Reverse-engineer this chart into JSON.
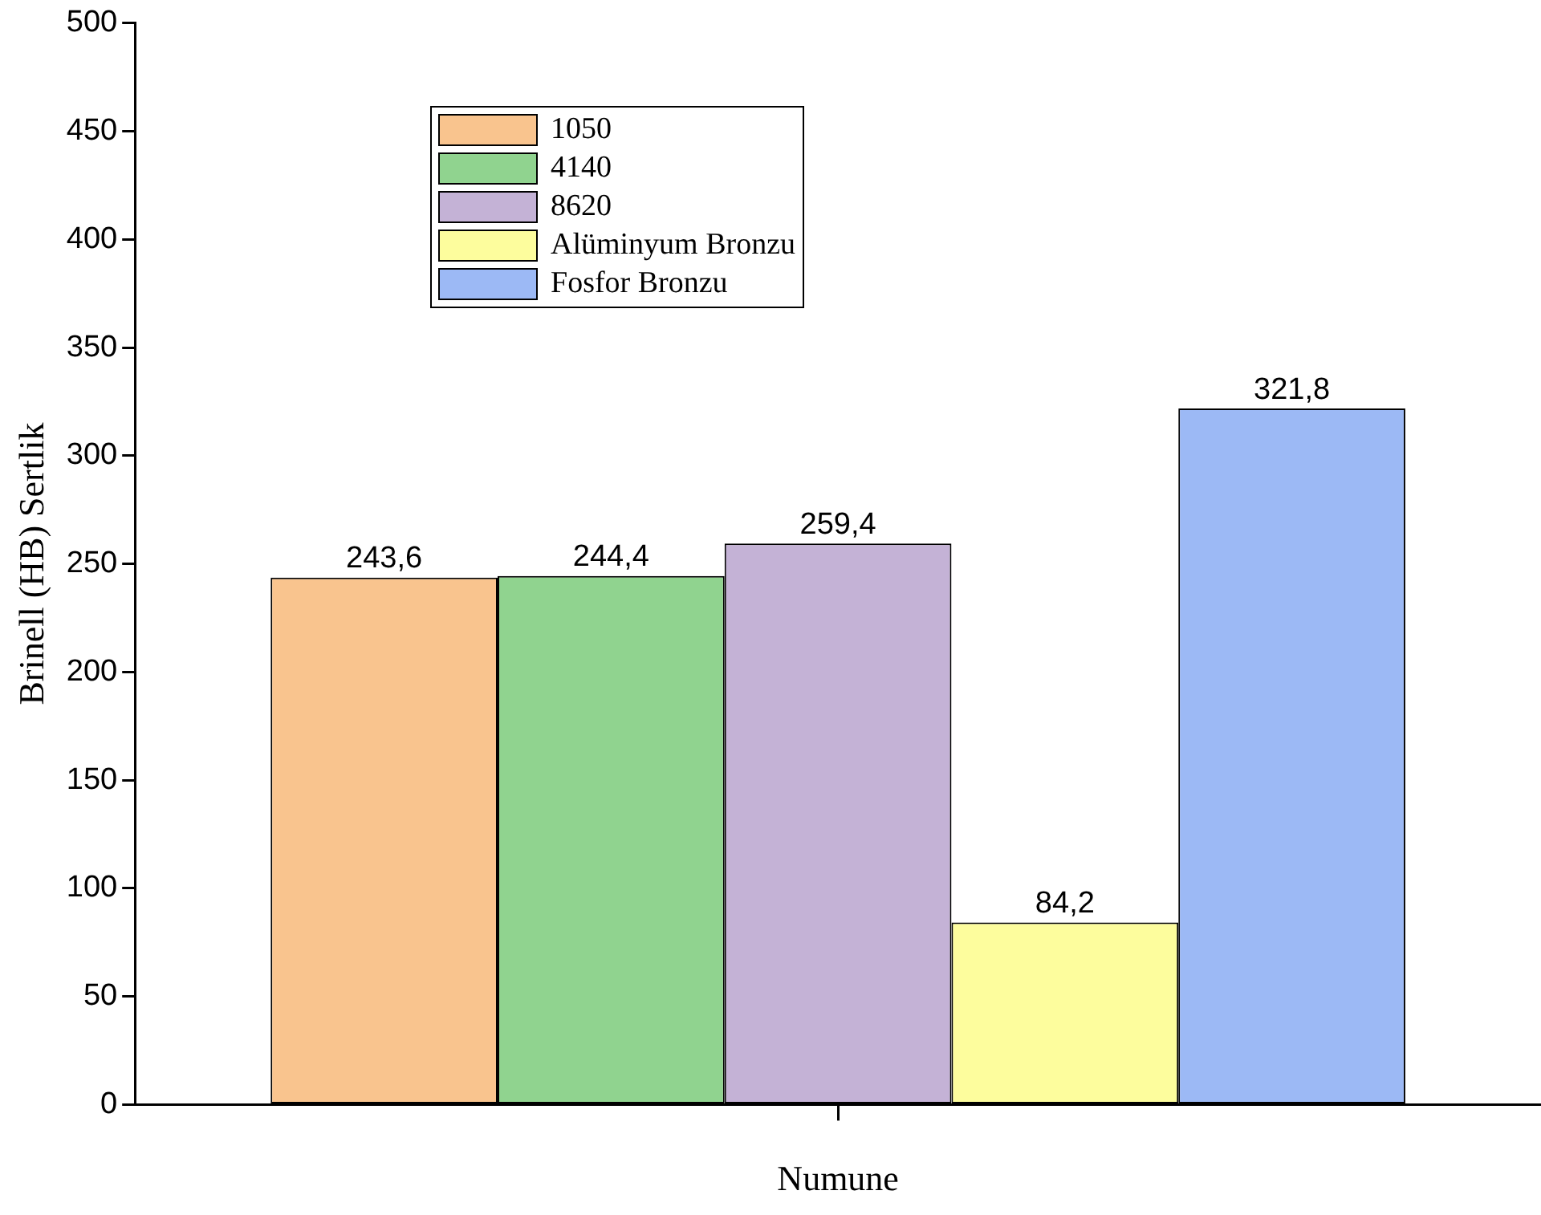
{
  "chart_data": {
    "type": "bar",
    "xlabel": "Numune",
    "ylabel": "Brinell (HB) Sertlik",
    "categories": [
      null
    ],
    "series": [
      {
        "name": "1050",
        "color": "#f9c48e",
        "values": [
          243.6
        ],
        "value_labels": [
          "243,6"
        ]
      },
      {
        "name": "4140",
        "color": "#90d38f",
        "values": [
          244.4
        ],
        "value_labels": [
          "244,4"
        ]
      },
      {
        "name": "8620",
        "color": "#c4b2d6",
        "values": [
          259.4
        ],
        "value_labels": [
          "259,4"
        ]
      },
      {
        "name": "Alüminyum Bronzu",
        "color": "#fdfd9d",
        "values": [
          84.2
        ],
        "value_labels": [
          "84,2"
        ]
      },
      {
        "name": "Fosfor Bronzu",
        "color": "#9cb9f5",
        "values": [
          321.8
        ],
        "value_labels": [
          "321,8"
        ]
      }
    ],
    "ylim": [
      0,
      500
    ],
    "yticks": [
      0,
      50,
      100,
      150,
      200,
      250,
      300,
      350,
      400,
      450,
      500
    ],
    "grid": false,
    "legend": "top left"
  }
}
